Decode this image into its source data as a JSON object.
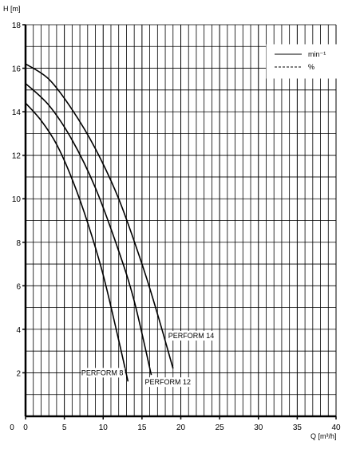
{
  "chart_data": {
    "type": "line",
    "title": "",
    "xlabel": "Q [m³/h]",
    "ylabel": "H [m]",
    "xlim": [
      0,
      40
    ],
    "ylim": [
      0,
      18
    ],
    "x_ticks": [
      "0",
      "5",
      "10",
      "15",
      "20",
      "25",
      "30",
      "35",
      "40"
    ],
    "y_ticks": [
      "2",
      "4",
      "6",
      "8",
      "10",
      "12",
      "14",
      "16",
      "18"
    ],
    "grid": true,
    "legend_position": "top-right",
    "legend": [
      {
        "style": "solid",
        "label": "min⁻¹"
      },
      {
        "style": "dashed",
        "label": "%"
      }
    ],
    "series": [
      {
        "name": "PERFORM 8",
        "x": [
          0,
          2,
          4,
          6,
          8,
          10,
          12,
          13.2
        ],
        "y": [
          14.4,
          13.6,
          12.5,
          10.9,
          8.9,
          6.5,
          3.5,
          1.6
        ]
      },
      {
        "name": "PERFORM 12",
        "x": [
          0,
          3,
          6,
          9,
          12,
          14,
          16.2
        ],
        "y": [
          15.3,
          14.3,
          12.7,
          10.5,
          7.6,
          5.3,
          1.9
        ]
      },
      {
        "name": "PERFORM 14",
        "x": [
          0,
          3,
          6,
          9,
          12,
          15,
          17,
          19.0
        ],
        "y": [
          16.2,
          15.5,
          14.1,
          12.3,
          10.0,
          7.0,
          4.7,
          2.2
        ]
      }
    ]
  }
}
